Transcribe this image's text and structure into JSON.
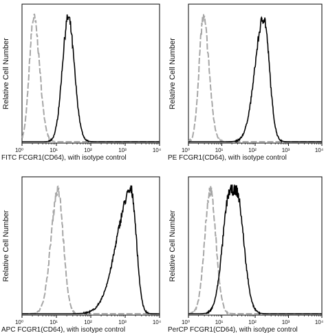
{
  "chart_data": [
    {
      "type": "line",
      "ylabel": "Relative Cell Number",
      "xlabel": "FITC  FCGR1(CD64),  with isotype control",
      "xscale": "log",
      "xlim": [
        1,
        10000
      ],
      "x_ticks": [
        "10⁰",
        "10¹",
        "10²",
        "10³",
        "10⁴"
      ],
      "series": [
        {
          "style": "dashed",
          "color": "#a6a6a6",
          "peak_x": 2.2,
          "spread_left": 0.13,
          "spread_right": 0.17,
          "values_note": ""
        },
        {
          "style": "solid",
          "color": "#000000",
          "peak_x": 22,
          "spread_left": 0.17,
          "spread_right": 0.18
        }
      ]
    },
    {
      "type": "line",
      "ylabel": "Relative Cell Number",
      "xlabel": "PE  FCGR1(CD64),  with isotype control",
      "xscale": "log",
      "xlim": [
        1,
        10000
      ],
      "x_ticks": [
        "10⁰",
        "10¹",
        "10²",
        "10³",
        "10⁴"
      ],
      "series": [
        {
          "style": "dashed",
          "color": "#a6a6a6",
          "peak_x": 2.8,
          "spread_left": 0.13,
          "spread_right": 0.17
        },
        {
          "style": "solid",
          "color": "#000000",
          "peak_x": 180,
          "spread_left": 0.26,
          "spread_right": 0.17
        }
      ]
    },
    {
      "type": "line",
      "ylabel": "Relative Cell Number",
      "xlabel": "APC FCGR1(CD64), with isotype control",
      "xscale": "log",
      "xlim": [
        1,
        10000
      ],
      "x_ticks": [
        "10⁰",
        "10¹",
        "10²",
        "10³",
        "10⁴"
      ],
      "series": [
        {
          "style": "dashed",
          "color": "#a6a6a6",
          "peak_x": 11,
          "spread_left": 0.2,
          "spread_right": 0.16
        },
        {
          "style": "solid",
          "color": "#000000",
          "peak_x": 1500,
          "spread_left": 0.42,
          "spread_right": 0.15
        }
      ]
    },
    {
      "type": "line",
      "ylabel": "Relative Cell Number",
      "xlabel": "PerCP FCGR1(CD64), with isotype control",
      "xscale": "log",
      "xlim": [
        1,
        10000
      ],
      "x_ticks": [
        "10⁰",
        "10¹",
        "10²",
        "10³",
        "10⁴"
      ],
      "series": [
        {
          "style": "dashed",
          "color": "#a6a6a6",
          "peak_x": 4.5,
          "spread_left": 0.17,
          "spread_right": 0.17
        },
        {
          "style": "solid",
          "color": "#000000",
          "peak_x": 22,
          "spread_left": 0.22,
          "spread_right": 0.22,
          "plateau": true
        }
      ]
    }
  ]
}
